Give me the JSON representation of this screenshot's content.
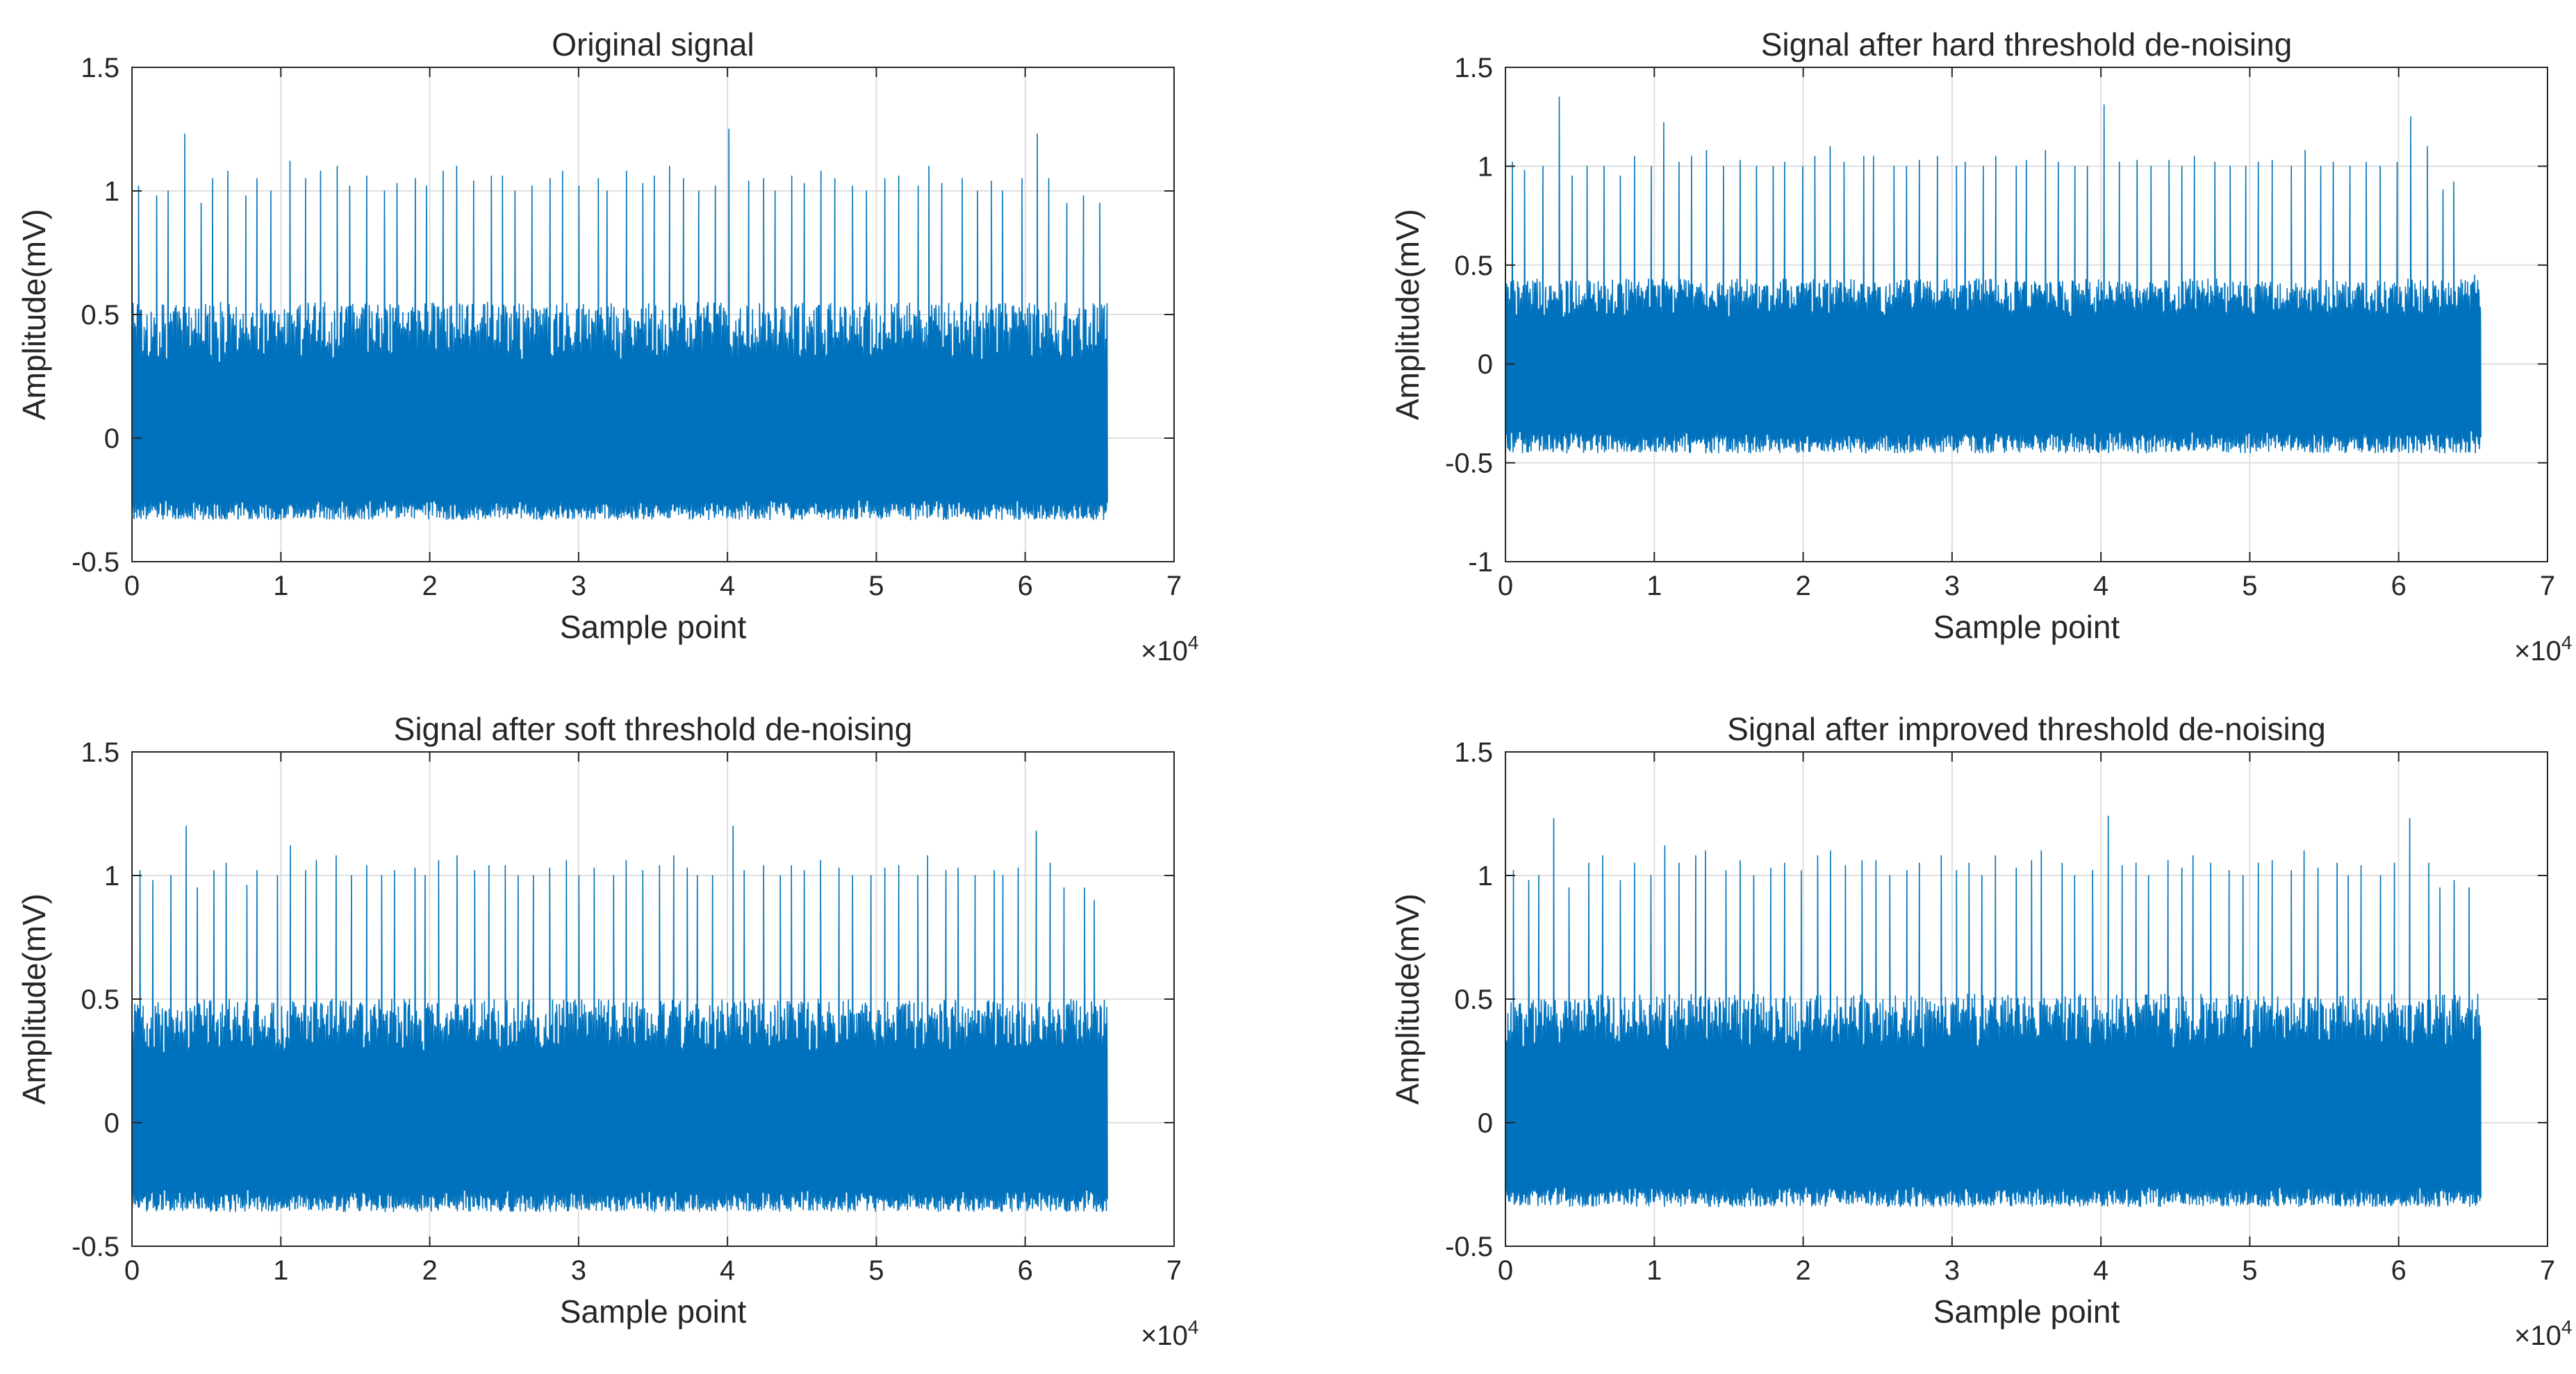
{
  "colors": {
    "line": "#0072BD",
    "axes": "#262626",
    "grid": "#dfdfdf",
    "background": "#ffffff"
  },
  "chart_data": [
    {
      "type": "line",
      "title": "Original signal",
      "xlabel": "Sample point",
      "ylabel": "Amplitude(mV)",
      "xlim": [
        0,
        7
      ],
      "ylim": [
        -0.5,
        1.5
      ],
      "x_ticks": [
        "0",
        "1",
        "2",
        "3",
        "4",
        "5",
        "6",
        "7"
      ],
      "y_ticks": [
        "-0.5",
        "0",
        "0.5",
        "1",
        "1.5"
      ],
      "x_exponent_base": "×10",
      "x_exponent_power": "4",
      "grid": true,
      "series": [
        {
          "name": "Original signal",
          "x_range": [
            0,
            6.55
          ],
          "baseline": -0.1,
          "noise_range": [
            -0.33,
            0.55
          ],
          "spike_values": [
            1.02,
            0.98,
            1.0,
            1.23,
            0.95,
            1.05,
            1.08,
            0.98,
            1.05,
            1.0,
            1.12,
            1.05,
            1.08,
            1.1,
            1.02,
            1.06,
            1.0,
            1.03,
            1.05,
            1.02,
            1.08,
            1.1,
            1.04,
            1.06,
            1.06,
            1.0,
            1.02,
            1.05,
            1.08,
            1.02,
            1.05,
            1.0,
            1.08,
            1.03,
            1.06,
            1.1,
            1.05,
            1.0,
            1.02,
            1.25,
            1.04,
            1.05,
            1.0,
            1.06,
            1.03,
            1.08,
            1.05,
            1.02,
            1.0,
            1.05,
            1.06,
            1.02,
            1.1,
            1.03,
            1.05,
            1.0,
            1.04,
            1.0,
            1.05,
            1.23,
            1.05,
            0.95,
            0.98,
            0.95
          ]
        }
      ]
    },
    {
      "type": "line",
      "title": "Signal after hard threshold de-noising",
      "xlabel": "Sample point",
      "ylabel": "Amplitude(mV)",
      "xlim": [
        0,
        7
      ],
      "ylim": [
        -1,
        1.5
      ],
      "x_ticks": [
        "0",
        "1",
        "2",
        "3",
        "4",
        "5",
        "6",
        "7"
      ],
      "y_ticks": [
        "-1",
        "-0.5",
        "0",
        "0.5",
        "1",
        "1.5"
      ],
      "x_exponent_base": "×10",
      "x_exponent_power": "4",
      "grid": true,
      "series": [
        {
          "name": "Signal after hard threshold de-noising",
          "x_range": [
            0,
            6.55
          ],
          "baseline": -0.05,
          "noise_range": [
            -0.45,
            0.43
          ],
          "spike_values": [
            1.02,
            0.98,
            1.0,
            1.35,
            0.95,
            1.0,
            1.0,
            0.95,
            1.05,
            1.0,
            1.22,
            1.02,
            1.05,
            1.08,
            1.0,
            1.03,
            1.0,
            1.0,
            1.02,
            1.0,
            1.05,
            1.1,
            1.02,
            1.05,
            1.05,
            1.0,
            1.0,
            1.03,
            1.05,
            1.0,
            1.02,
            1.0,
            1.05,
            1.0,
            1.03,
            1.08,
            1.02,
            1.0,
            1.0,
            1.31,
            1.02,
            1.03,
            1.0,
            1.03,
            1.0,
            1.05,
            1.02,
            1.0,
            1.0,
            1.02,
            1.03,
            1.0,
            1.08,
            1.0,
            1.02,
            1.0,
            1.02,
            1.0,
            1.02,
            1.25,
            1.1,
            0.88,
            0.92,
            0.45
          ]
        }
      ]
    },
    {
      "type": "line",
      "title": "Signal after soft threshold de-noising",
      "xlabel": "Sample point",
      "ylabel": "Amplitude(mV)",
      "xlim": [
        0,
        7
      ],
      "ylim": [
        -0.5,
        1.5
      ],
      "x_ticks": [
        "0",
        "1",
        "2",
        "3",
        "4",
        "5",
        "6",
        "7"
      ],
      "y_ticks": [
        "-0.5",
        "0",
        "0.5",
        "1",
        "1.5"
      ],
      "x_exponent_base": "×10",
      "x_exponent_power": "4",
      "grid": true,
      "series": [
        {
          "name": "Signal after soft threshold de-noising",
          "x_range": [
            0,
            6.55
          ],
          "baseline": -0.08,
          "noise_range": [
            -0.36,
            0.5
          ],
          "spike_values": [
            1.02,
            0.98,
            1.0,
            1.2,
            0.95,
            1.02,
            1.05,
            0.96,
            1.02,
            1.0,
            1.12,
            1.02,
            1.06,
            1.08,
            1.0,
            1.04,
            1.0,
            1.02,
            1.03,
            1.0,
            1.06,
            1.08,
            1.02,
            1.04,
            1.04,
            1.0,
            1.0,
            1.03,
            1.06,
            1.0,
            1.03,
            1.0,
            1.06,
            1.02,
            1.04,
            1.08,
            1.03,
            1.0,
            1.0,
            1.2,
            1.02,
            1.04,
            1.0,
            1.04,
            1.02,
            1.06,
            1.03,
            1.0,
            1.0,
            1.03,
            1.04,
            1.0,
            1.08,
            1.02,
            1.03,
            1.0,
            1.02,
            1.0,
            1.03,
            1.18,
            1.05,
            0.95,
            0.95,
            0.9
          ]
        }
      ]
    },
    {
      "type": "line",
      "title": "Signal after improved threshold de-noising",
      "xlabel": "Sample point",
      "ylabel": "Amplitude(mV)",
      "xlim": [
        0,
        7
      ],
      "ylim": [
        -0.5,
        1.5
      ],
      "x_ticks": [
        "0",
        "1",
        "2",
        "3",
        "4",
        "5",
        "6",
        "7"
      ],
      "y_ticks": [
        "-0.5",
        "0",
        "0.5",
        "1",
        "1.5"
      ],
      "x_exponent_base": "×10",
      "x_exponent_power": "4",
      "grid": true,
      "series": [
        {
          "name": "Signal after improved threshold de-noising",
          "x_range": [
            0,
            6.55
          ],
          "baseline": -0.08,
          "noise_range": [
            -0.34,
            0.52
          ],
          "spike_values": [
            1.02,
            0.98,
            1.0,
            1.23,
            0.95,
            1.05,
            1.08,
            0.98,
            1.05,
            1.0,
            1.12,
            1.05,
            1.08,
            1.1,
            1.02,
            1.06,
            1.0,
            1.03,
            1.05,
            1.02,
            1.08,
            1.1,
            1.04,
            1.06,
            1.06,
            1.0,
            1.02,
            1.05,
            1.08,
            1.02,
            1.05,
            1.0,
            1.08,
            1.03,
            1.06,
            1.1,
            1.05,
            1.0,
            1.02,
            1.24,
            1.04,
            1.05,
            1.0,
            1.06,
            1.03,
            1.08,
            1.05,
            1.02,
            1.0,
            1.05,
            1.06,
            1.02,
            1.1,
            1.03,
            1.05,
            1.0,
            1.04,
            1.0,
            1.05,
            1.23,
            1.05,
            0.95,
            0.98,
            0.95
          ]
        }
      ]
    }
  ]
}
